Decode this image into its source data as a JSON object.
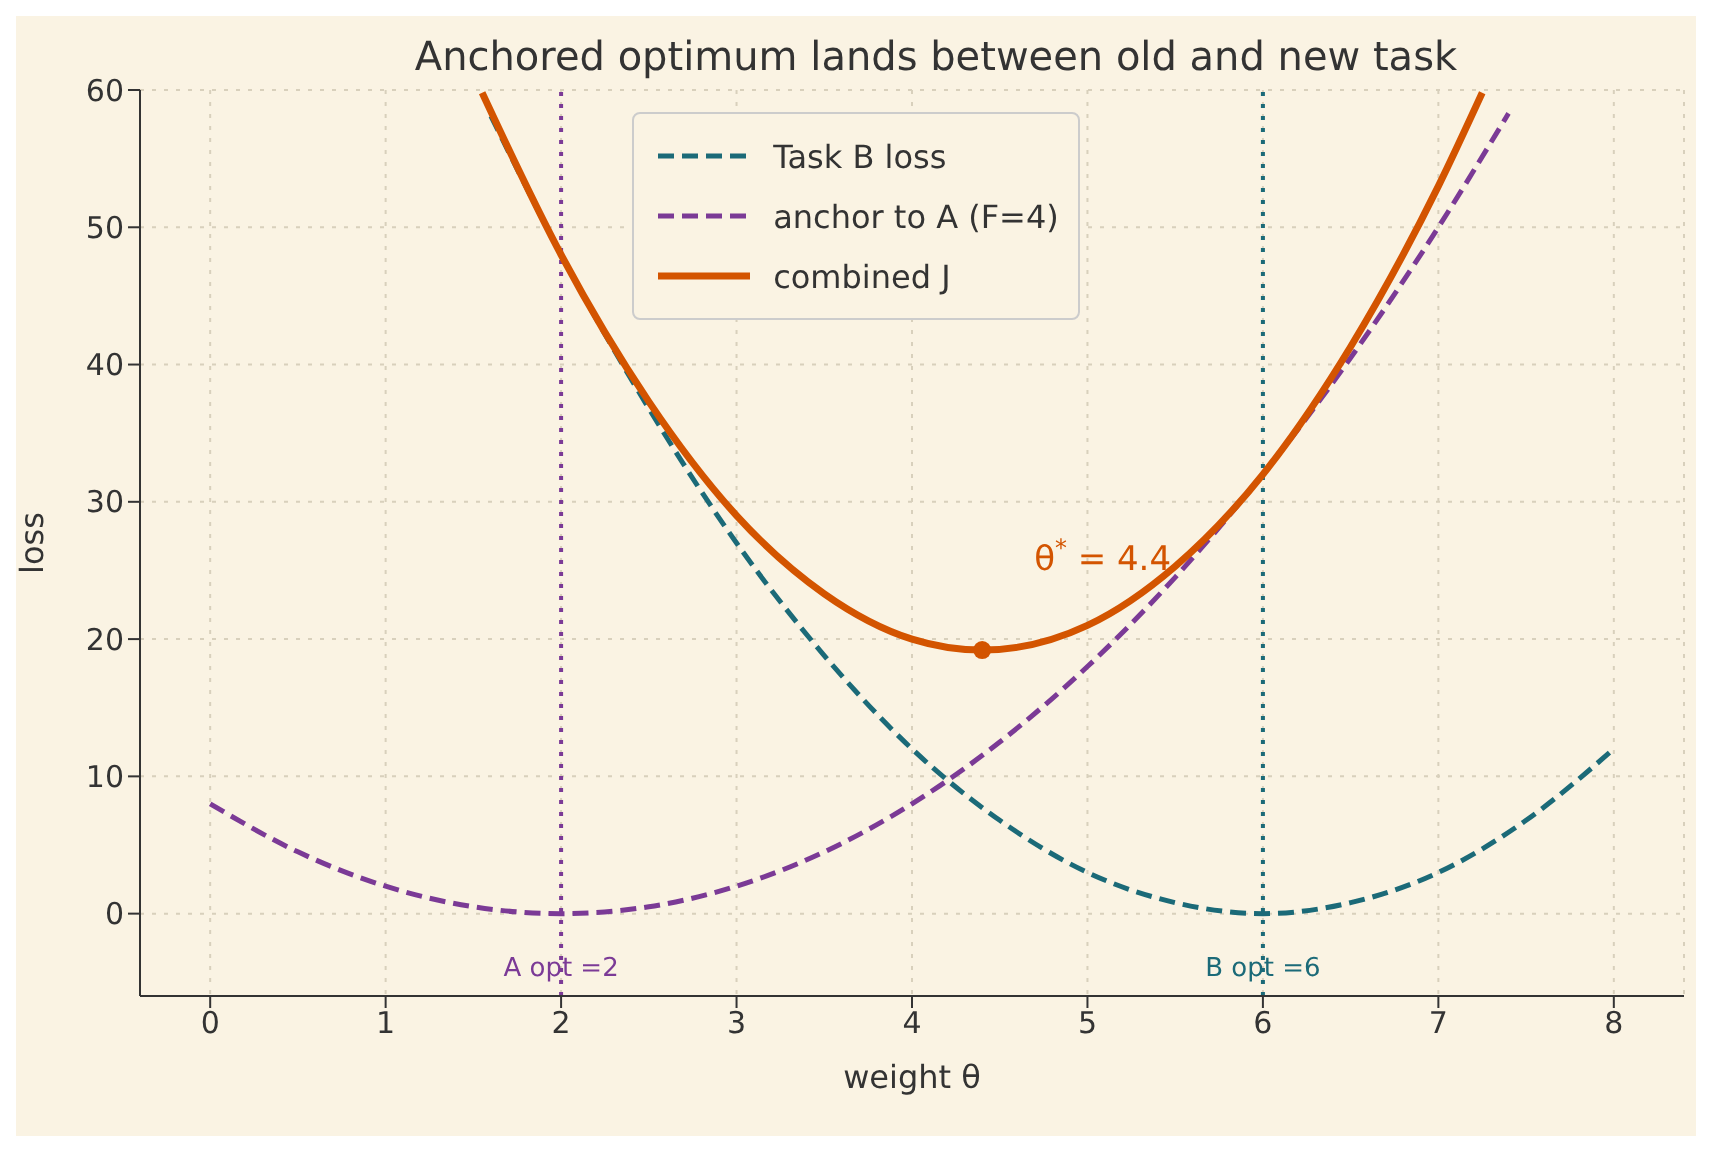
{
  "chart_data": {
    "type": "line",
    "title": "Anchored optimum lands between old and new task",
    "xlabel": "weight θ",
    "ylabel": "loss",
    "xlim": [
      -0.4,
      8.4
    ],
    "xticks": [
      0,
      1,
      2,
      3,
      4,
      5,
      6,
      7,
      8
    ],
    "ylim": [
      -6,
      60
    ],
    "yticks": [
      0,
      10,
      20,
      30,
      40,
      50,
      60
    ],
    "grid": true,
    "legend": "top",
    "series": [
      {
        "name": "Task B loss",
        "color": "#1b6a78",
        "line_style": "dashed",
        "x": [
          1.6,
          2,
          2.5,
          3,
          3.5,
          4,
          4.5,
          5,
          5.5,
          6,
          6.5,
          7,
          7.5,
          8
        ],
        "values": [
          58.1,
          48,
          36.8,
          27,
          18.8,
          12,
          6.8,
          3,
          0.8,
          0,
          0.8,
          3,
          6.8,
          12
        ]
      },
      {
        "name": "anchor to A (F=4)",
        "color": "#7b3a96",
        "line_style": "dashed",
        "x": [
          0,
          0.5,
          1,
          1.5,
          2,
          2.5,
          3,
          3.5,
          4,
          4.5,
          5,
          5.5,
          6,
          6.5,
          7,
          7.4
        ],
        "values": [
          8,
          4.5,
          2,
          0.5,
          0,
          0.5,
          2,
          4.5,
          8,
          12.5,
          18,
          24.5,
          32,
          40.5,
          50,
          58.3
        ]
      },
      {
        "name": "combined J",
        "color": "#d35400",
        "line_style": "solid",
        "x": [
          1.55,
          2,
          2.5,
          3,
          3.5,
          4,
          4.4,
          5,
          5.5,
          6,
          6.5,
          7,
          7.25
        ],
        "values": [
          59.8,
          48,
          37.3,
          29,
          23.3,
          20,
          19.2,
          21,
          25.3,
          32,
          41.3,
          53,
          59.8
        ]
      },
      {
        "type": "scatter",
        "color": "#d35400",
        "marker": "circle",
        "x": [
          4.4
        ],
        "values": [
          19.2
        ]
      }
    ],
    "ref_lines": [
      {
        "axis": "x",
        "value": 2,
        "label": "A opt =2",
        "color": "#7b3a96",
        "line_style": "dotted"
      },
      {
        "axis": "x",
        "value": 6,
        "label": "B opt =6",
        "color": "#1b6a78",
        "line_style": "dotted"
      }
    ],
    "annotations": [
      "θ$^{*}$ = 4.4"
    ]
  }
}
